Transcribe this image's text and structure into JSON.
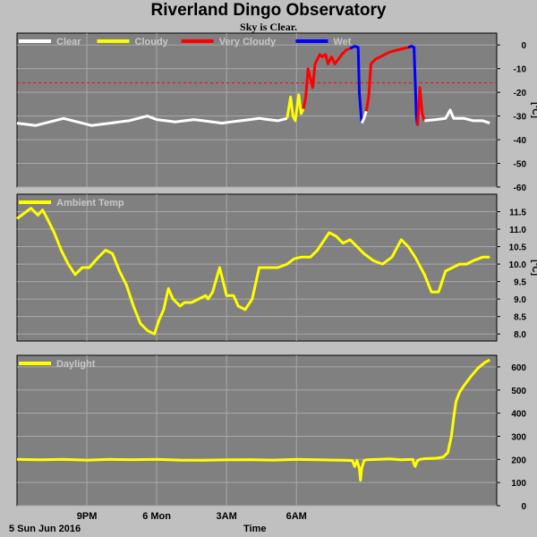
{
  "title": "Riverland Dingo Observatory",
  "subtitle": "Sky is Clear.",
  "footer": {
    "date": "5 Sun Jun 2016",
    "xlabel": "Time"
  },
  "colors": {
    "panel": "#808080",
    "grid": "#a8a8a8",
    "clear": "#ffffff",
    "cloudy": "#ffff00",
    "very_cloudy": "#ff0000",
    "wet": "#0000ff",
    "threshold": "#ff0000"
  },
  "chart_data": [
    {
      "type": "line",
      "name": "sky",
      "ylabel": "[°C]",
      "ylim": [
        -60,
        5
      ],
      "yticks": [
        0,
        -10,
        -20,
        -30,
        -40,
        -50,
        -60
      ],
      "ytick_labels": [
        "0",
        "-10",
        "-20",
        "-30",
        "-40",
        "-50",
        "-60"
      ],
      "threshold": -16,
      "legend": [
        {
          "label": "Clear",
          "color": "#ffffff"
        },
        {
          "label": "Cloudy",
          "color": "#ffff00"
        },
        {
          "label": "Very Cloudy",
          "color": "#ff0000"
        },
        {
          "label": "Wet",
          "color": "#0000ff"
        }
      ],
      "x_unit": "hours since 18:00",
      "segments": [
        {
          "state": "clear",
          "color": "#ffffff",
          "points": [
            [
              0,
              -33
            ],
            [
              0.4,
              -33.5
            ],
            [
              0.8,
              -34
            ],
            [
              1.2,
              -33
            ],
            [
              1.6,
              -32
            ],
            [
              2,
              -31
            ],
            [
              2.4,
              -32
            ],
            [
              2.8,
              -33
            ],
            [
              3.2,
              -34
            ],
            [
              3.6,
              -33.5
            ],
            [
              4,
              -33
            ],
            [
              4.4,
              -32.5
            ],
            [
              4.8,
              -32
            ],
            [
              5.2,
              -31
            ],
            [
              5.6,
              -30
            ],
            [
              6,
              -31.5
            ],
            [
              6.4,
              -32
            ],
            [
              6.8,
              -32.5
            ],
            [
              7.2,
              -32
            ],
            [
              7.6,
              -31.5
            ],
            [
              8,
              -32
            ],
            [
              8.4,
              -32.5
            ],
            [
              8.8,
              -33
            ],
            [
              9.2,
              -32.5
            ],
            [
              9.6,
              -32
            ],
            [
              10,
              -31.5
            ],
            [
              10.4,
              -31
            ],
            [
              10.8,
              -31.5
            ],
            [
              11.2,
              -32
            ],
            [
              11.6,
              -31
            ]
          ]
        },
        {
          "state": "cloudy",
          "color": "#ffff00",
          "points": [
            [
              11.6,
              -31
            ],
            [
              11.75,
              -22
            ],
            [
              11.85,
              -30
            ],
            [
              11.95,
              -32
            ],
            [
              12.1,
              -21
            ],
            [
              12.2,
              -29
            ],
            [
              12.3,
              -27
            ]
          ]
        },
        {
          "state": "very_cloudy",
          "color": "#ff0000",
          "points": [
            [
              12.3,
              -27
            ],
            [
              12.4,
              -22
            ],
            [
              12.5,
              -10
            ],
            [
              12.6,
              -14
            ],
            [
              12.7,
              -18
            ],
            [
              12.8,
              -8
            ],
            [
              12.9,
              -6
            ],
            [
              13,
              -4
            ],
            [
              13.1,
              -5
            ],
            [
              13.25,
              -4
            ],
            [
              13.35,
              -8
            ],
            [
              13.5,
              -5
            ],
            [
              13.65,
              -8
            ],
            [
              13.8,
              -6
            ],
            [
              13.95,
              -4
            ],
            [
              14.05,
              -3
            ],
            [
              14.15,
              -2
            ],
            [
              14.3,
              -1.5
            ]
          ]
        },
        {
          "state": "wet",
          "color": "#0000ff",
          "points": [
            [
              14.3,
              -1.5
            ],
            [
              14.5,
              -0.5
            ],
            [
              14.65,
              -1
            ],
            [
              14.7,
              -20
            ],
            [
              14.8,
              -33
            ]
          ]
        },
        {
          "state": "clear",
          "color": "#ffffff",
          "points": [
            [
              14.8,
              -33
            ],
            [
              14.9,
              -31
            ],
            [
              15,
              -28
            ]
          ]
        },
        {
          "state": "very_cloudy",
          "color": "#ff0000",
          "points": [
            [
              15,
              -28
            ],
            [
              15.1,
              -22
            ],
            [
              15.2,
              -8
            ],
            [
              15.4,
              -6
            ],
            [
              15.6,
              -5
            ],
            [
              15.8,
              -4
            ],
            [
              16,
              -3
            ],
            [
              16.2,
              -2.5
            ],
            [
              16.4,
              -2
            ],
            [
              16.6,
              -1.5
            ],
            [
              16.8,
              -1
            ]
          ]
        },
        {
          "state": "wet",
          "color": "#0000ff",
          "points": [
            [
              16.8,
              -1
            ],
            [
              16.95,
              -0.5
            ],
            [
              17.05,
              -1
            ],
            [
              17.1,
              -15
            ],
            [
              17.15,
              -30
            ],
            [
              17.2,
              -34
            ]
          ]
        },
        {
          "state": "very_cloudy",
          "color": "#ff0000",
          "points": [
            [
              17.2,
              -34
            ],
            [
              17.3,
              -18
            ],
            [
              17.4,
              -29
            ],
            [
              17.5,
              -32
            ]
          ]
        },
        {
          "state": "clear",
          "color": "#ffffff",
          "points": [
            [
              17.5,
              -32
            ],
            [
              18,
              -31.5
            ],
            [
              18.4,
              -31
            ],
            [
              18.6,
              -27.5
            ],
            [
              18.75,
              -31
            ],
            [
              19.2,
              -31
            ],
            [
              19.6,
              -32
            ],
            [
              20,
              -32
            ],
            [
              20.3,
              -33
            ]
          ]
        }
      ]
    },
    {
      "type": "line",
      "name": "ambient",
      "legend": [
        {
          "label": "Ambient Temp",
          "color": "#ffff00"
        }
      ],
      "ylabel": "[°C]",
      "ylim": [
        7.8,
        12
      ],
      "yticks": [
        8.0,
        8.5,
        9.0,
        9.5,
        10.0,
        10.5,
        11.0,
        11.5
      ],
      "ytick_labels": [
        "8.0",
        "8.5",
        "9.0",
        "9.5",
        "10.0",
        "10.5",
        "11.0",
        "11.5"
      ],
      "x_unit": "hours since 18:00",
      "x": [
        0,
        0.3,
        0.6,
        0.9,
        1.1,
        1.3,
        1.6,
        1.9,
        2.2,
        2.5,
        2.8,
        3.1,
        3.5,
        3.8,
        4.1,
        4.4,
        4.7,
        5,
        5.3,
        5.6,
        5.9,
        6.1,
        6.3,
        6.5,
        6.7,
        7,
        7.2,
        7.5,
        7.8,
        8.1,
        8.2,
        8.4,
        8.7,
        9,
        9.3,
        9.5,
        9.8,
        10.1,
        10.4,
        10.8,
        11.2,
        11.6,
        11.9,
        12.2,
        12.6,
        12.9,
        13.1,
        13.4,
        13.7,
        14,
        14.3,
        14.6,
        14.9,
        15.3,
        15.7,
        16.1,
        16.5,
        16.8,
        17.1,
        17.5,
        17.8,
        18.1,
        18.4,
        18.7,
        19,
        19.3,
        19.6,
        20,
        20.3
      ],
      "y": [
        11.3,
        11.45,
        11.6,
        11.4,
        11.55,
        11.3,
        10.9,
        10.4,
        10.0,
        9.7,
        9.9,
        9.9,
        10.2,
        10.4,
        10.3,
        9.8,
        9.4,
        8.8,
        8.3,
        8.1,
        8.0,
        8.4,
        8.7,
        9.3,
        9.0,
        8.8,
        8.9,
        8.9,
        9.0,
        9.1,
        9.0,
        9.2,
        9.9,
        9.1,
        9.1,
        8.8,
        8.7,
        9.0,
        9.9,
        9.9,
        9.9,
        10.0,
        10.15,
        10.2,
        10.2,
        10.4,
        10.6,
        10.9,
        10.8,
        10.6,
        10.7,
        10.5,
        10.3,
        10.1,
        10.0,
        10.2,
        10.7,
        10.5,
        10.2,
        9.7,
        9.2,
        9.2,
        9.8,
        9.9,
        10.0,
        10.0,
        10.1,
        10.2,
        10.2
      ]
    },
    {
      "type": "line",
      "name": "daylight",
      "legend": [
        {
          "label": "Daylight",
          "color": "#ffff00"
        }
      ],
      "ylim": [
        0,
        650
      ],
      "yticks": [
        0,
        100,
        200,
        300,
        400,
        500,
        600
      ],
      "ytick_labels": [
        "0",
        "100",
        "200",
        "300",
        "400",
        "500",
        "600"
      ],
      "x_unit": "hours since 18:00",
      "x": [
        0,
        1,
        2,
        3,
        4,
        5,
        6,
        7,
        8,
        9,
        10,
        11,
        12,
        13,
        14,
        14.4,
        14.5,
        14.6,
        14.7,
        14.75,
        14.8,
        14.9,
        15,
        15.5,
        16,
        16.5,
        17,
        17.05,
        17.1,
        17.2,
        17.3,
        17.5,
        18,
        18.3,
        18.5,
        18.65,
        18.75,
        18.85,
        19,
        19.2,
        19.5,
        19.8,
        20.1,
        20.3
      ],
      "y": [
        200,
        198,
        200,
        197,
        200,
        199,
        200,
        197,
        196,
        198,
        199,
        197,
        200,
        198,
        196,
        195,
        170,
        195,
        160,
        110,
        160,
        195,
        198,
        200,
        202,
        198,
        200,
        180,
        170,
        195,
        200,
        203,
        205,
        210,
        230,
        300,
        380,
        450,
        490,
        520,
        560,
        595,
        620,
        630
      ]
    }
  ],
  "x_axis": {
    "ticks": [
      {
        "label": "9PM",
        "x": 3
      },
      {
        "label": "6 Mon",
        "x": 6
      },
      {
        "label": "3AM",
        "x": 9
      },
      {
        "label": "6AM",
        "x": 12
      }
    ]
  }
}
